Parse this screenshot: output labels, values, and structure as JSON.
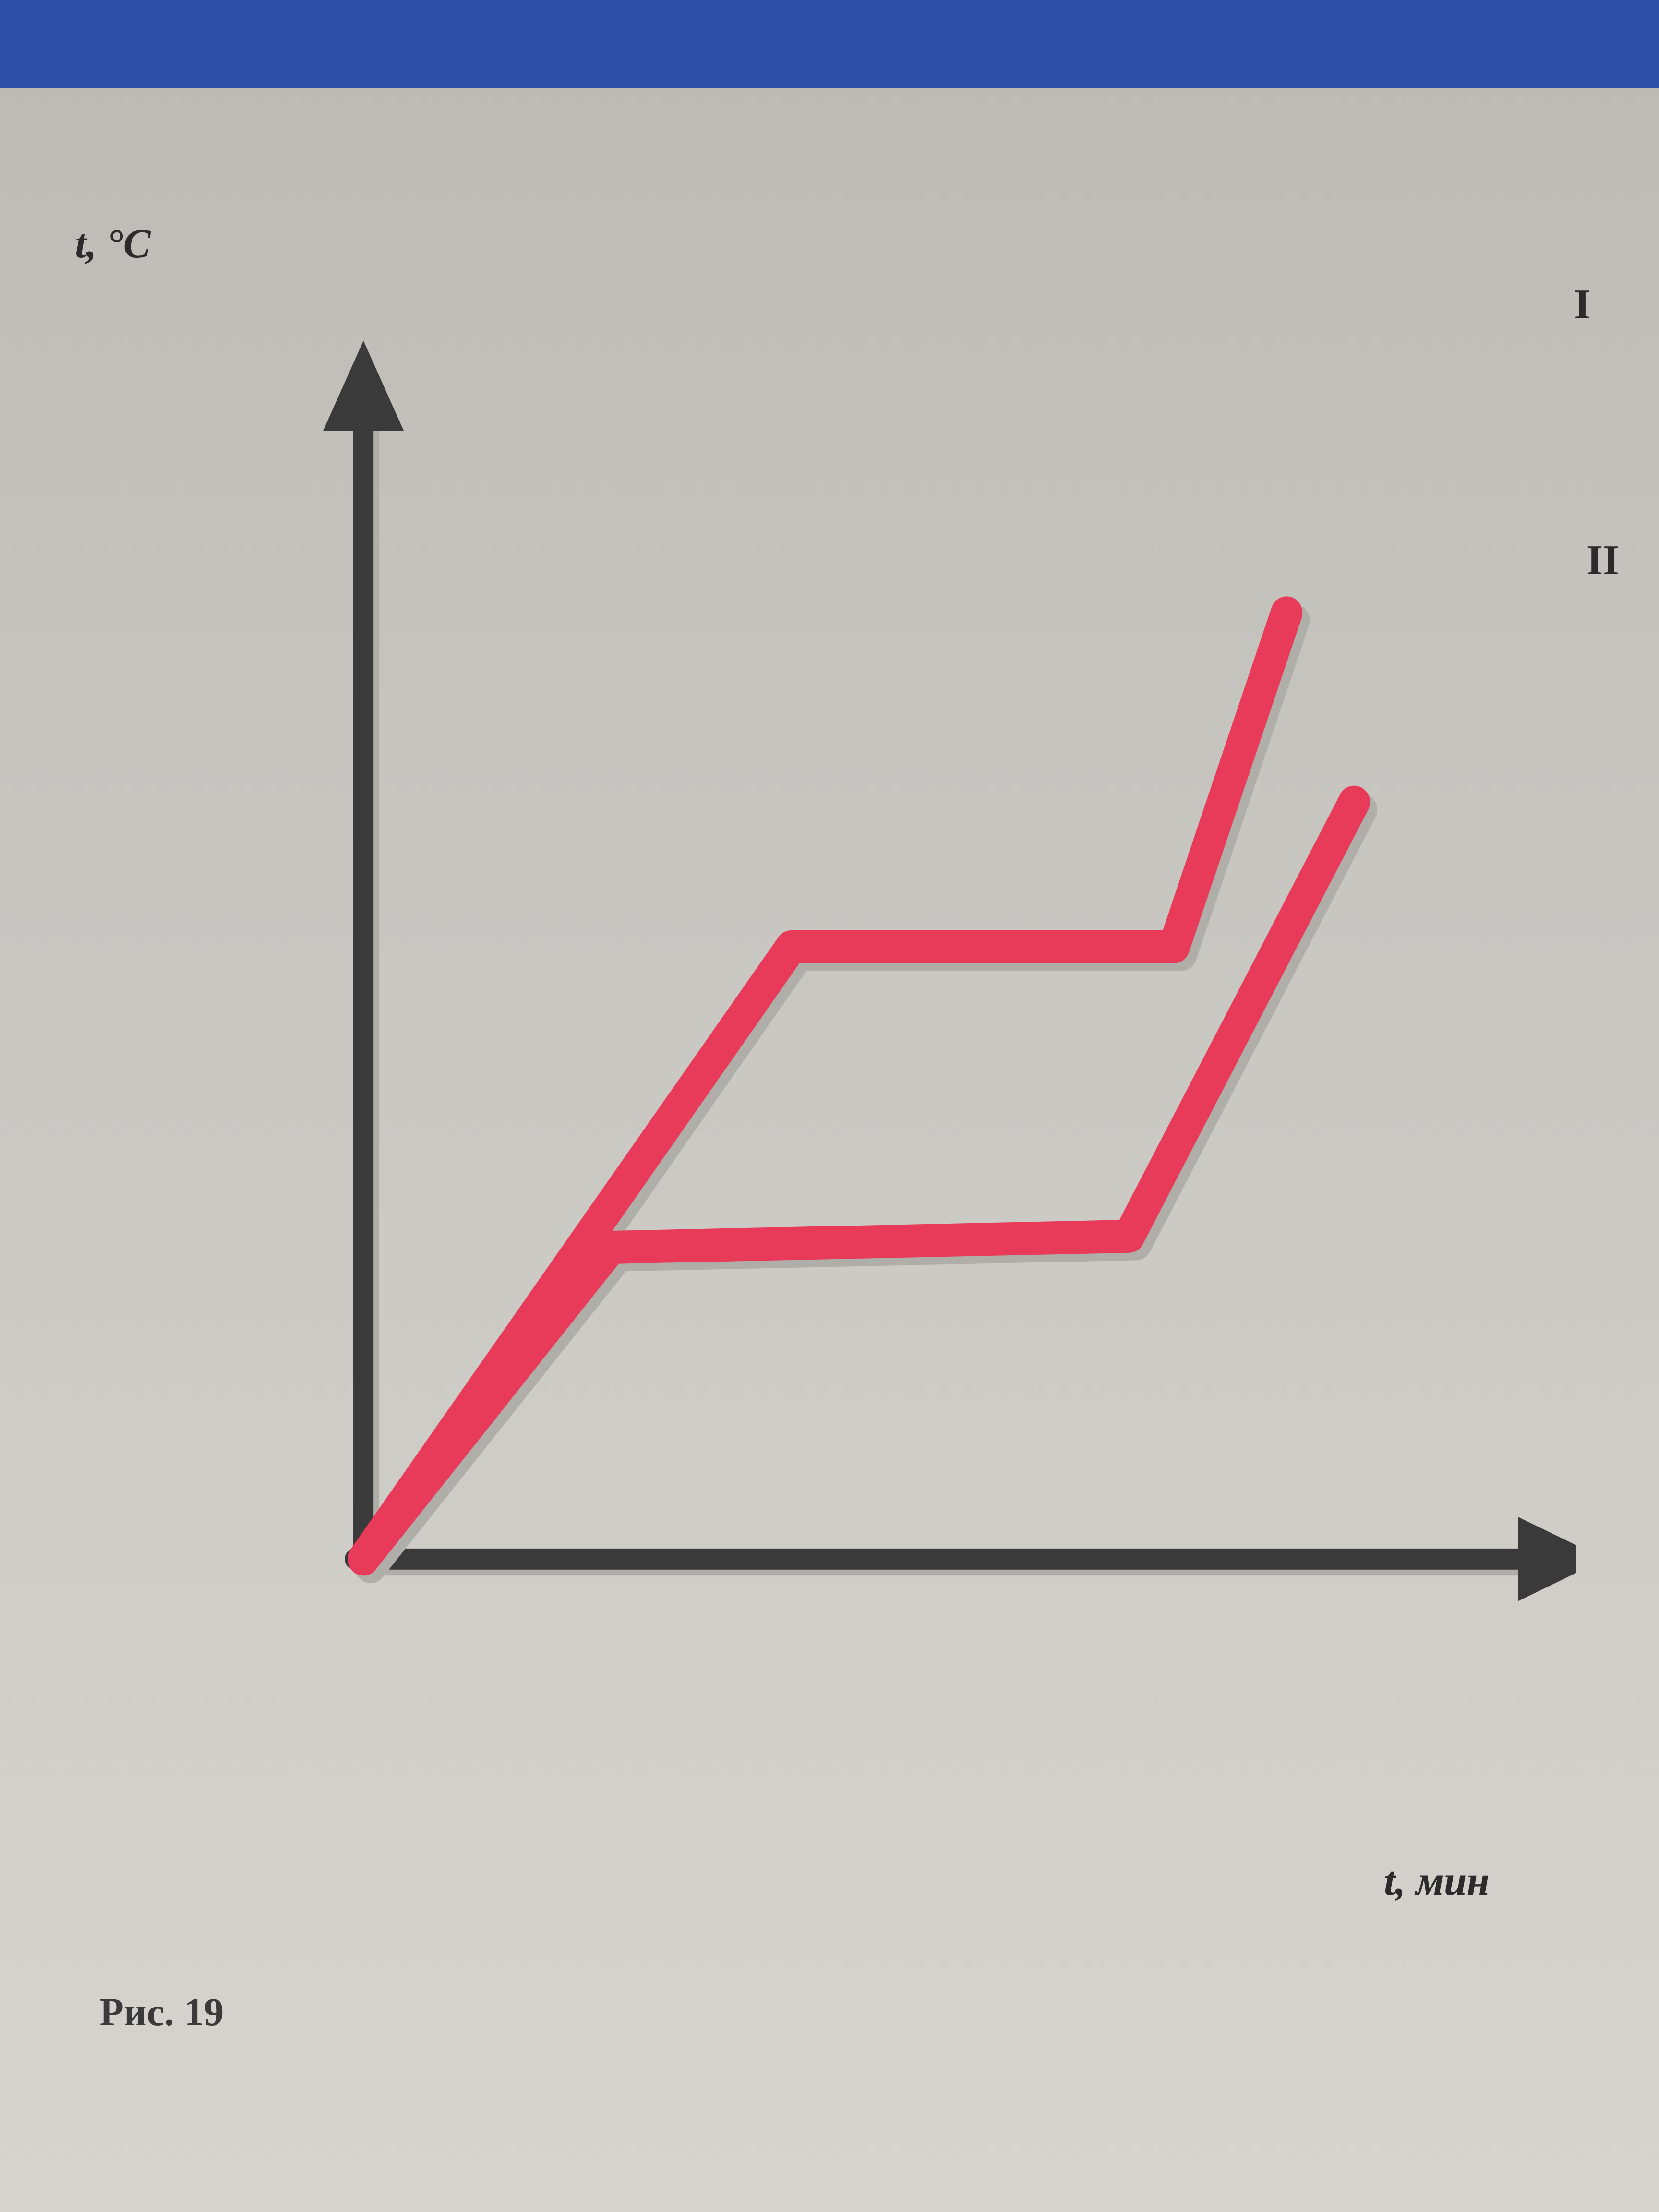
{
  "page": {
    "background_color": "#c8c6c1",
    "paper_tint_top": "#bcbab4",
    "paper_tint_bottom": "#d6d4ce"
  },
  "top_banner": {
    "color": "#2f4fa8",
    "height_pct": 4
  },
  "chart": {
    "type": "line",
    "axis_color": "#3a3a3a",
    "axis_stroke_width": 14,
    "arrow_size": 28,
    "y_axis_label": "t, °C",
    "x_axis_label": "t, мин",
    "label_fontsize_pt": 64,
    "label_color": "#2b2b2b",
    "series_stroke_width": 22,
    "series_color": "#e83b5a",
    "series_shadow_color": "#b0aea8",
    "background_color": "transparent",
    "series": [
      {
        "id": "I",
        "label": "I",
        "points": [
          {
            "x": 0,
            "y": 0
          },
          {
            "x": 38,
            "y": 55
          },
          {
            "x": 72,
            "y": 55
          },
          {
            "x": 82,
            "y": 85
          }
        ]
      },
      {
        "id": "II",
        "label": "II",
        "points": [
          {
            "x": 0,
            "y": 0
          },
          {
            "x": 22,
            "y": 28
          },
          {
            "x": 68,
            "y": 29
          },
          {
            "x": 88,
            "y": 68
          }
        ]
      }
    ],
    "xlim": [
      0,
      100
    ],
    "ylim": [
      0,
      100
    ],
    "series_label_fontsize_pt": 66
  },
  "caption": {
    "text": "Рис. 19",
    "fontsize_pt": 62,
    "color": "#3a3a3a"
  }
}
